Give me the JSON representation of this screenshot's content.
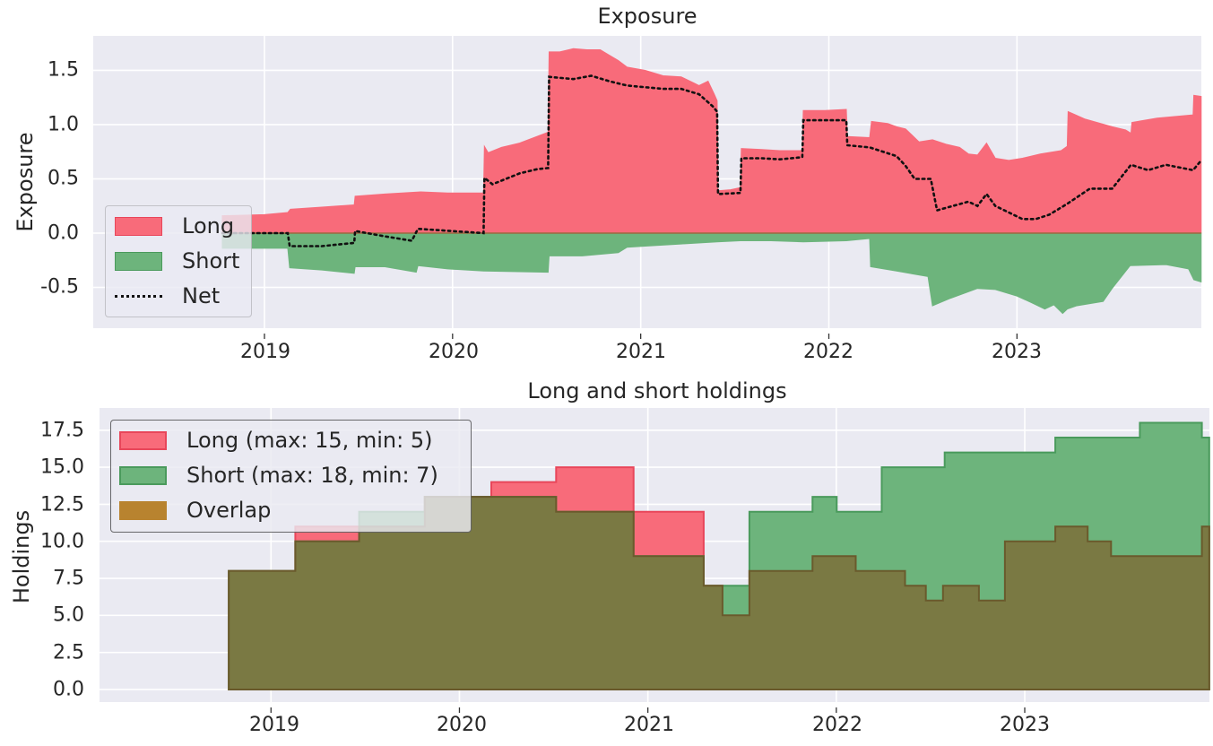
{
  "colors": {
    "axes_bg": "#eaeaf2",
    "grid": "#ffffff",
    "long": "#f86b7a",
    "long_edge": "#e8465a",
    "short": "#6db47c",
    "short_edge": "#4a9a5c",
    "overlap": "#7a7943",
    "overlap_edge": "#6a5a2c",
    "net": "#111111"
  },
  "chart_data": [
    {
      "type": "area",
      "title": "Exposure",
      "xlabel": "",
      "ylabel": "Exposure",
      "xlim": [
        2018.09,
        2023.98
      ],
      "ylim": [
        -0.876,
        1.818
      ],
      "xticks": [
        2019,
        2020,
        2021,
        2022,
        2023
      ],
      "xtick_labels": [
        "2019",
        "2020",
        "2021",
        "2022",
        "2023"
      ],
      "yticks": [
        1.5,
        1.0,
        0.5,
        0.0,
        -0.5
      ],
      "ytick_labels": [
        "1.5",
        "1.0",
        "0.5",
        "0.0",
        "-0.5"
      ],
      "grid": true,
      "legend": {
        "position": "lower left",
        "entries": [
          "Long",
          "Short",
          "Net"
        ]
      },
      "series": [
        {
          "name": "Long",
          "kind": "fill",
          "points": [
            [
              2018.776,
              0.16
            ],
            [
              2019.0,
              0.17
            ],
            [
              2019.124,
              0.19
            ],
            [
              2019.138,
              0.22
            ],
            [
              2019.305,
              0.24
            ],
            [
              2019.477,
              0.26
            ],
            [
              2019.482,
              0.34
            ],
            [
              2019.64,
              0.36
            ],
            [
              2019.831,
              0.38
            ],
            [
              2019.974,
              0.37
            ],
            [
              2020.165,
              0.37
            ],
            [
              2020.169,
              0.8
            ],
            [
              2020.189,
              0.74
            ],
            [
              2020.26,
              0.79
            ],
            [
              2020.356,
              0.83
            ],
            [
              2020.508,
              0.93
            ],
            [
              2020.513,
              1.67
            ],
            [
              2020.57,
              1.67
            ],
            [
              2020.642,
              1.7
            ],
            [
              2020.714,
              1.69
            ],
            [
              2020.785,
              1.69
            ],
            [
              2020.833,
              1.64
            ],
            [
              2020.881,
              1.59
            ],
            [
              2020.928,
              1.53
            ],
            [
              2021.024,
              1.5
            ],
            [
              2021.119,
              1.45
            ],
            [
              2021.215,
              1.44
            ],
            [
              2021.286,
              1.38
            ],
            [
              2021.31,
              1.36
            ],
            [
              2021.358,
              1.4
            ],
            [
              2021.391,
              1.28
            ],
            [
              2021.406,
              1.22
            ],
            [
              2021.411,
              0.39
            ],
            [
              2021.477,
              0.4
            ],
            [
              2021.53,
              0.42
            ],
            [
              2021.535,
              0.78
            ],
            [
              2021.644,
              0.77
            ],
            [
              2021.74,
              0.76
            ],
            [
              2021.859,
              0.76
            ],
            [
              2021.864,
              1.13
            ],
            [
              2021.979,
              1.13
            ],
            [
              2022.093,
              1.14
            ],
            [
              2022.098,
              0.89
            ],
            [
              2022.217,
              0.88
            ],
            [
              2022.227,
              1.03
            ],
            [
              2022.313,
              1.01
            ],
            [
              2022.36,
              0.98
            ],
            [
              2022.408,
              0.96
            ],
            [
              2022.48,
              0.84
            ],
            [
              2022.551,
              0.86
            ],
            [
              2022.623,
              0.82
            ],
            [
              2022.695,
              0.79
            ],
            [
              2022.742,
              0.73
            ],
            [
              2022.79,
              0.72
            ],
            [
              2022.838,
              0.83
            ],
            [
              2022.885,
              0.69
            ],
            [
              2022.957,
              0.67
            ],
            [
              2023.029,
              0.69
            ],
            [
              2023.124,
              0.73
            ],
            [
              2023.234,
              0.76
            ],
            [
              2023.267,
              0.8
            ],
            [
              2023.272,
              1.12
            ],
            [
              2023.363,
              1.05
            ],
            [
              2023.506,
              0.98
            ],
            [
              2023.578,
              0.95
            ],
            [
              2023.606,
              0.92
            ],
            [
              2023.611,
              1.02
            ],
            [
              2023.745,
              1.06
            ],
            [
              2023.936,
              1.09
            ],
            [
              2023.94,
              1.27
            ],
            [
              2023.979,
              1.26
            ]
          ]
        },
        {
          "name": "Short",
          "kind": "fill",
          "points": [
            [
              2018.776,
              -0.14
            ],
            [
              2019.124,
              -0.14
            ],
            [
              2019.134,
              -0.32
            ],
            [
              2019.305,
              -0.34
            ],
            [
              2019.477,
              -0.37
            ],
            [
              2019.482,
              -0.31
            ],
            [
              2019.64,
              -0.31
            ],
            [
              2019.807,
              -0.36
            ],
            [
              2019.816,
              -0.3
            ],
            [
              2019.974,
              -0.33
            ],
            [
              2020.165,
              -0.35
            ],
            [
              2020.508,
              -0.36
            ],
            [
              2020.513,
              -0.21
            ],
            [
              2020.69,
              -0.21
            ],
            [
              2020.881,
              -0.18
            ],
            [
              2020.928,
              -0.13
            ],
            [
              2021.024,
              -0.12
            ],
            [
              2021.215,
              -0.1
            ],
            [
              2021.406,
              -0.08
            ],
            [
              2021.53,
              -0.07
            ],
            [
              2021.692,
              -0.07
            ],
            [
              2021.864,
              -0.08
            ],
            [
              2022.093,
              -0.07
            ],
            [
              2022.217,
              -0.05
            ],
            [
              2022.222,
              -0.31
            ],
            [
              2022.36,
              -0.35
            ],
            [
              2022.527,
              -0.4
            ],
            [
              2022.551,
              -0.67
            ],
            [
              2022.647,
              -0.6
            ],
            [
              2022.79,
              -0.51
            ],
            [
              2022.885,
              -0.52
            ],
            [
              2023.0,
              -0.58
            ],
            [
              2023.076,
              -0.64
            ],
            [
              2023.148,
              -0.7
            ],
            [
              2023.196,
              -0.66
            ],
            [
              2023.243,
              -0.74
            ],
            [
              2023.267,
              -0.7
            ],
            [
              2023.315,
              -0.67
            ],
            [
              2023.458,
              -0.63
            ],
            [
              2023.506,
              -0.51
            ],
            [
              2023.601,
              -0.3
            ],
            [
              2023.792,
              -0.29
            ],
            [
              2023.912,
              -0.33
            ],
            [
              2023.94,
              -0.43
            ],
            [
              2023.979,
              -0.45
            ]
          ]
        },
        {
          "name": "Net",
          "kind": "line",
          "points": [
            [
              2018.776,
              0.0
            ],
            [
              2019.124,
              0.0
            ],
            [
              2019.134,
              -0.12
            ],
            [
              2019.305,
              -0.12
            ],
            [
              2019.477,
              -0.09
            ],
            [
              2019.482,
              0.02
            ],
            [
              2019.64,
              -0.03
            ],
            [
              2019.783,
              -0.07
            ],
            [
              2019.816,
              0.04
            ],
            [
              2020.165,
              0.0
            ],
            [
              2020.169,
              0.51
            ],
            [
              2020.212,
              0.45
            ],
            [
              2020.356,
              0.55
            ],
            [
              2020.451,
              0.59
            ],
            [
              2020.508,
              0.6
            ],
            [
              2020.513,
              1.44
            ],
            [
              2020.642,
              1.42
            ],
            [
              2020.737,
              1.45
            ],
            [
              2020.833,
              1.4
            ],
            [
              2020.928,
              1.36
            ],
            [
              2021.119,
              1.33
            ],
            [
              2021.215,
              1.33
            ],
            [
              2021.31,
              1.28
            ],
            [
              2021.382,
              1.17
            ],
            [
              2021.406,
              1.12
            ],
            [
              2021.411,
              0.36
            ],
            [
              2021.53,
              0.37
            ],
            [
              2021.535,
              0.69
            ],
            [
              2021.644,
              0.69
            ],
            [
              2021.74,
              0.68
            ],
            [
              2021.859,
              0.7
            ],
            [
              2021.864,
              1.04
            ],
            [
              2022.093,
              1.04
            ],
            [
              2022.098,
              0.81
            ],
            [
              2022.217,
              0.79
            ],
            [
              2022.36,
              0.71
            ],
            [
              2022.408,
              0.62
            ],
            [
              2022.456,
              0.5
            ],
            [
              2022.542,
              0.5
            ],
            [
              2022.575,
              0.21
            ],
            [
              2022.742,
              0.29
            ],
            [
              2022.79,
              0.25
            ],
            [
              2022.838,
              0.36
            ],
            [
              2022.885,
              0.25
            ],
            [
              2023.029,
              0.13
            ],
            [
              2023.1,
              0.13
            ],
            [
              2023.172,
              0.17
            ],
            [
              2023.267,
              0.27
            ],
            [
              2023.387,
              0.41
            ],
            [
              2023.506,
              0.41
            ],
            [
              2023.606,
              0.63
            ],
            [
              2023.697,
              0.58
            ],
            [
              2023.792,
              0.63
            ],
            [
              2023.936,
              0.58
            ],
            [
              2023.979,
              0.67
            ]
          ]
        }
      ]
    },
    {
      "type": "area",
      "title": "Long and short holdings",
      "xlabel": "",
      "ylabel": "Holdings",
      "xlim": [
        2018.09,
        2023.98
      ],
      "ylim": [
        -0.85,
        19.0
      ],
      "xticks": [
        2019,
        2020,
        2021,
        2022,
        2023
      ],
      "xtick_labels": [
        "2019",
        "2020",
        "2021",
        "2022",
        "2023"
      ],
      "yticks": [
        17.5,
        15.0,
        12.5,
        10.0,
        7.5,
        5.0,
        2.5,
        0.0
      ],
      "ytick_labels": [
        "17.5",
        "15.0",
        "12.5",
        "10.0",
        "7.5",
        "5.0",
        "2.5",
        "0.0"
      ],
      "grid": true,
      "legend": {
        "position": "upper left",
        "entries": [
          "Long (max: 15, min: 5)",
          "Short (max: 18, min: 7)",
          "Overlap"
        ]
      },
      "x_end": 2023.979,
      "series": [
        {
          "name": "Long (max: 15, min: 5)",
          "kind": "step",
          "steps": [
            [
              2018.776,
              8
            ],
            [
              2019.129,
              11
            ],
            [
              2019.816,
              13
            ],
            [
              2020.169,
              14
            ],
            [
              2020.513,
              15
            ],
            [
              2020.924,
              12
            ],
            [
              2021.296,
              7
            ],
            [
              2021.396,
              5
            ],
            [
              2021.539,
              8
            ],
            [
              2021.874,
              9
            ],
            [
              2022.103,
              8
            ],
            [
              2022.365,
              7
            ],
            [
              2022.475,
              6
            ],
            [
              2022.566,
              7
            ],
            [
              2022.757,
              6
            ],
            [
              2022.895,
              10
            ],
            [
              2023.162,
              11
            ],
            [
              2023.334,
              10
            ],
            [
              2023.458,
              9
            ],
            [
              2023.94,
              11
            ]
          ]
        },
        {
          "name": "Short (max: 18, min: 7)",
          "kind": "step",
          "steps": [
            [
              2018.776,
              8
            ],
            [
              2019.129,
              10
            ],
            [
              2019.468,
              12
            ],
            [
              2019.816,
              13
            ],
            [
              2020.513,
              12
            ],
            [
              2020.924,
              9
            ],
            [
              2021.296,
              7
            ],
            [
              2021.539,
              12
            ],
            [
              2021.874,
              13
            ],
            [
              2022.002,
              12
            ],
            [
              2022.241,
              15
            ],
            [
              2022.575,
              16
            ],
            [
              2023.162,
              17
            ],
            [
              2023.611,
              18
            ],
            [
              2023.94,
              17
            ]
          ]
        },
        {
          "name": "Overlap",
          "kind": "step",
          "steps": [
            [
              2018.776,
              8
            ],
            [
              2019.129,
              10
            ],
            [
              2019.468,
              11
            ],
            [
              2019.816,
              13
            ],
            [
              2020.513,
              12
            ],
            [
              2020.924,
              9
            ],
            [
              2021.296,
              7
            ],
            [
              2021.396,
              5
            ],
            [
              2021.539,
              8
            ],
            [
              2021.874,
              9
            ],
            [
              2022.103,
              8
            ],
            [
              2022.365,
              7
            ],
            [
              2022.475,
              6
            ],
            [
              2022.566,
              7
            ],
            [
              2022.757,
              6
            ],
            [
              2022.895,
              10
            ],
            [
              2023.162,
              11
            ],
            [
              2023.334,
              10
            ],
            [
              2023.458,
              9
            ],
            [
              2023.94,
              11
            ]
          ]
        }
      ]
    }
  ],
  "top": {
    "title": "Exposure",
    "ylabel": "Exposure",
    "legend": {
      "long": "Long",
      "short": "Short",
      "net": "Net"
    },
    "xticks": [
      "2019",
      "2020",
      "2021",
      "2022",
      "2023"
    ],
    "yticks": [
      "1.5",
      "1.0",
      "0.5",
      "0.0",
      "-0.5"
    ]
  },
  "bottom": {
    "title": "Long and short holdings",
    "ylabel": "Holdings",
    "legend": {
      "long": "Long (max: 15, min: 5)",
      "short": "Short (max: 18, min: 7)",
      "overlap": "Overlap"
    },
    "xticks": [
      "2019",
      "2020",
      "2021",
      "2022",
      "2023"
    ],
    "yticks": [
      "17.5",
      "15.0",
      "12.5",
      "10.0",
      "7.5",
      "5.0",
      "2.5",
      "0.0"
    ]
  }
}
